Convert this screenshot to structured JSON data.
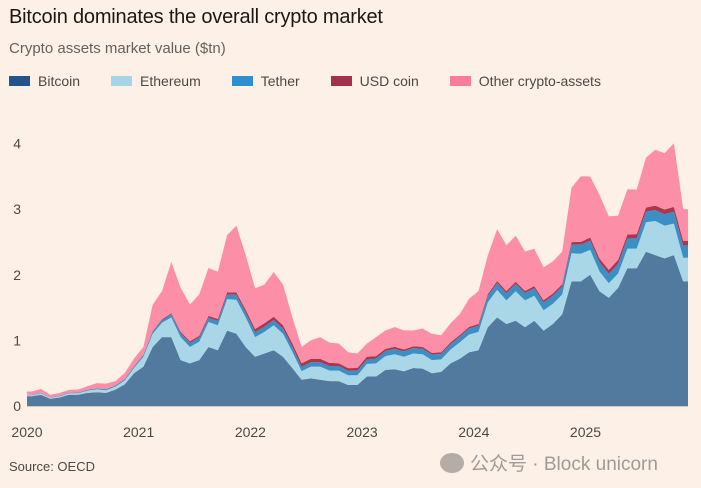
{
  "chart_data": {
    "type": "area",
    "stacked": true,
    "title": "Bitcoin dominates the overall crypto market",
    "subtitle": "Crypto assets market value ($tn)",
    "source": "Source: OECD",
    "xlabel": "",
    "ylabel": "",
    "ylim": [
      0,
      4.4
    ],
    "yticks": [
      "0",
      "1",
      "2",
      "3",
      "4"
    ],
    "xticks": [
      "2020",
      "2021",
      "2022",
      "2023",
      "2024",
      "2025"
    ],
    "grid": false,
    "legend_position": "top-left",
    "x_start": "2020-01",
    "x_frequency": "monthly",
    "series": [
      {
        "name": "Bitcoin",
        "color": "#52799e",
        "legend_color": "#23558b",
        "values": [
          0.15,
          0.17,
          0.11,
          0.13,
          0.17,
          0.17,
          0.2,
          0.21,
          0.2,
          0.25,
          0.33,
          0.5,
          0.6,
          0.9,
          1.05,
          1.05,
          0.7,
          0.65,
          0.7,
          0.9,
          0.85,
          1.15,
          1.1,
          0.9,
          0.75,
          0.8,
          0.85,
          0.75,
          0.58,
          0.4,
          0.42,
          0.4,
          0.38,
          0.38,
          0.32,
          0.32,
          0.45,
          0.45,
          0.55,
          0.56,
          0.53,
          0.58,
          0.57,
          0.5,
          0.52,
          0.65,
          0.72,
          0.82,
          0.85,
          1.2,
          1.35,
          1.25,
          1.3,
          1.2,
          1.3,
          1.15,
          1.25,
          1.4,
          1.9,
          1.9,
          2.0,
          1.75,
          1.65,
          1.8,
          2.1,
          2.1,
          2.35,
          2.3,
          2.25,
          2.3,
          1.9
        ]
      },
      {
        "name": "Ethereum",
        "color": "#a9d7e8",
        "legend_color": "#a6d5ea",
        "values": [
          0.015,
          0.025,
          0.015,
          0.02,
          0.025,
          0.025,
          0.035,
          0.045,
          0.04,
          0.045,
          0.06,
          0.08,
          0.15,
          0.2,
          0.22,
          0.3,
          0.35,
          0.25,
          0.28,
          0.38,
          0.38,
          0.48,
          0.52,
          0.45,
          0.3,
          0.33,
          0.38,
          0.35,
          0.25,
          0.13,
          0.18,
          0.2,
          0.16,
          0.16,
          0.15,
          0.15,
          0.19,
          0.2,
          0.21,
          0.23,
          0.22,
          0.22,
          0.22,
          0.2,
          0.19,
          0.21,
          0.25,
          0.27,
          0.28,
          0.38,
          0.42,
          0.36,
          0.45,
          0.41,
          0.38,
          0.31,
          0.31,
          0.3,
          0.43,
          0.42,
          0.38,
          0.3,
          0.22,
          0.22,
          0.3,
          0.3,
          0.45,
          0.52,
          0.5,
          0.48,
          0.36
        ]
      },
      {
        "name": "Tether",
        "color": "#3b8fc4",
        "legend_color": "#2e8ed0",
        "values": [
          0.005,
          0.005,
          0.006,
          0.007,
          0.009,
          0.01,
          0.01,
          0.012,
          0.015,
          0.016,
          0.018,
          0.02,
          0.025,
          0.035,
          0.04,
          0.05,
          0.06,
          0.062,
          0.062,
          0.065,
          0.068,
          0.07,
          0.073,
          0.077,
          0.078,
          0.078,
          0.08,
          0.082,
          0.073,
          0.066,
          0.066,
          0.068,
          0.068,
          0.069,
          0.065,
          0.066,
          0.067,
          0.069,
          0.078,
          0.081,
          0.083,
          0.083,
          0.084,
          0.083,
          0.083,
          0.084,
          0.088,
          0.091,
          0.095,
          0.098,
          0.104,
          0.11,
          0.112,
          0.113,
          0.114,
          0.118,
          0.12,
          0.12,
          0.13,
          0.138,
          0.139,
          0.142,
          0.144,
          0.148,
          0.153,
          0.158,
          0.162,
          0.167,
          0.172,
          0.18,
          0.184
        ]
      },
      {
        "name": "USD coin",
        "color": "#a8384f",
        "legend_color": "#a3304f",
        "values": [
          0.0005,
          0.0006,
          0.0007,
          0.0008,
          0.0009,
          0.001,
          0.0012,
          0.0015,
          0.002,
          0.003,
          0.003,
          0.004,
          0.005,
          0.008,
          0.011,
          0.015,
          0.022,
          0.025,
          0.027,
          0.028,
          0.03,
          0.033,
          0.037,
          0.042,
          0.046,
          0.052,
          0.052,
          0.049,
          0.053,
          0.055,
          0.055,
          0.052,
          0.049,
          0.044,
          0.043,
          0.044,
          0.043,
          0.041,
          0.033,
          0.031,
          0.029,
          0.028,
          0.027,
          0.026,
          0.026,
          0.025,
          0.024,
          0.025,
          0.027,
          0.028,
          0.032,
          0.033,
          0.033,
          0.032,
          0.034,
          0.035,
          0.035,
          0.035,
          0.038,
          0.043,
          0.05,
          0.056,
          0.06,
          0.061,
          0.061,
          0.062,
          0.064,
          0.068,
          0.073,
          0.075,
          0.075
        ]
      },
      {
        "name": "Other crypto-assets",
        "color": "#fd8ea8",
        "legend_color": "#fb7d9d",
        "values": [
          0.05,
          0.06,
          0.04,
          0.04,
          0.04,
          0.045,
          0.055,
          0.08,
          0.085,
          0.065,
          0.09,
          0.12,
          0.12,
          0.4,
          0.43,
          0.78,
          0.67,
          0.56,
          0.63,
          0.73,
          0.72,
          0.87,
          1.02,
          0.83,
          0.62,
          0.59,
          0.68,
          0.62,
          0.4,
          0.25,
          0.28,
          0.33,
          0.31,
          0.3,
          0.24,
          0.22,
          0.2,
          0.29,
          0.28,
          0.3,
          0.29,
          0.24,
          0.28,
          0.29,
          0.26,
          0.29,
          0.32,
          0.43,
          0.5,
          0.59,
          0.79,
          0.7,
          0.7,
          0.6,
          0.57,
          0.5,
          0.49,
          0.5,
          0.83,
          1.0,
          0.93,
          0.97,
          0.82,
          0.67,
          0.69,
          0.68,
          0.76,
          0.85,
          0.86,
          0.97,
          0.48
        ]
      }
    ]
  },
  "watermark": "公众号 · Block unicorn"
}
